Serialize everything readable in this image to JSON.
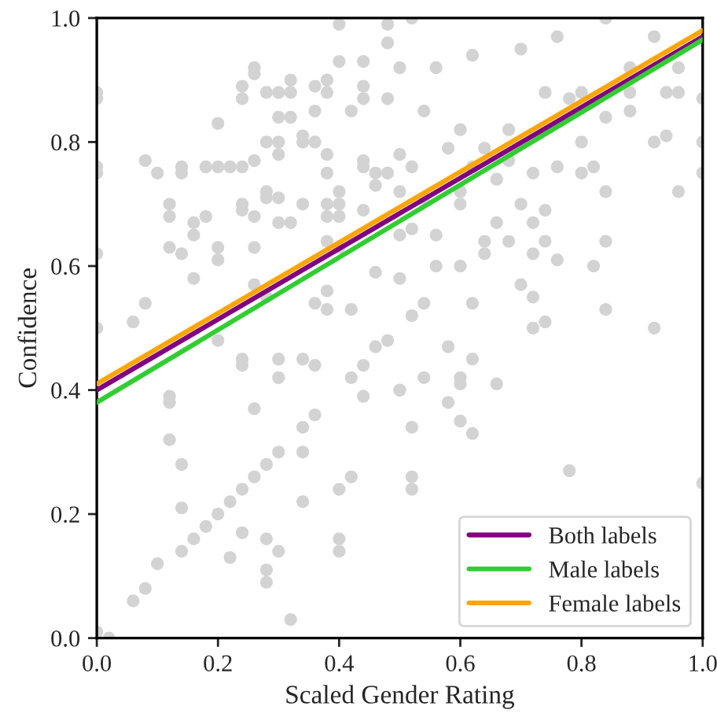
{
  "chart_data": {
    "type": "scatter",
    "xlabel": "Scaled Gender Rating",
    "ylabel": "Confidence",
    "xlim": [
      0,
      1
    ],
    "ylim": [
      0,
      1
    ],
    "xticks": [
      {
        "value": 0,
        "label": "0.0"
      },
      {
        "value": 0.2,
        "label": "0.2"
      },
      {
        "value": 0.4,
        "label": "0.4"
      },
      {
        "value": 0.6,
        "label": "0.6"
      },
      {
        "value": 0.8,
        "label": "0.8"
      },
      {
        "value": 1,
        "label": "1.0"
      }
    ],
    "yticks": [
      {
        "value": 0,
        "label": "0.0"
      },
      {
        "value": 0.2,
        "label": "0.2"
      },
      {
        "value": 0.4,
        "label": "0.4"
      },
      {
        "value": 0.6,
        "label": "0.6"
      },
      {
        "value": 0.8,
        "label": "0.8"
      },
      {
        "value": 1,
        "label": "1.0"
      }
    ],
    "grid": false,
    "legend": "bottom right",
    "marker": "circle",
    "series": [
      {
        "color": "#d3d3d3",
        "x": [
          0.06,
          0.08,
          0.1,
          0.14,
          0.16,
          0.18,
          0.2,
          0.22,
          0.24,
          0.26,
          0.28,
          0.3,
          0.34,
          0.34,
          0.36,
          0.34,
          0.4,
          0.42,
          0.4,
          0.4,
          0.28,
          0.3,
          0.28,
          0.28,
          0.32,
          0.22,
          0.24,
          0.14,
          0.14,
          0.12,
          0.12,
          0.12,
          0.26,
          0.3,
          0.3,
          0.34,
          0.36,
          0.42,
          0.44,
          0.44,
          0.46,
          0.48,
          0.5,
          0.24,
          0.24,
          0.2,
          0.06,
          0.0,
          0.0,
          0.02,
          0.78,
          0.52,
          0.52,
          0.52,
          0.62,
          0.6,
          0.58,
          0.5,
          0.54,
          0.6,
          0.6,
          0.66,
          0.62,
          0.58,
          0.72,
          0.74,
          0.92,
          1.0,
          0.84,
          0.84,
          0.82,
          0.76,
          0.7,
          0.72,
          0.62,
          0.52,
          0.54,
          0.5,
          0.56,
          0.6,
          0.64,
          0.68,
          0.72,
          0.74,
          0.84,
          0.96,
          0.92,
          0.94,
          1.0,
          0.94,
          0.96,
          0.96,
          0.52,
          0.56,
          0.6,
          0.64,
          0.66,
          0.7,
          0.72,
          0.76,
          0.8,
          0.8,
          0.82,
          0.84,
          0.88,
          0.88,
          0.92,
          0.84,
          0.76,
          0.7,
          0.62,
          0.56,
          0.5,
          0.54,
          0.6,
          0.64,
          0.68,
          0.74,
          0.78,
          0.8,
          0.88,
          0.5,
          0.52,
          0.58,
          0.66,
          0.5,
          0.54,
          0.6,
          0.62,
          0.68,
          0.72,
          0.74,
          0.5,
          0.52,
          1.0,
          1.0,
          0.0,
          0.0,
          0.0,
          0.0,
          0.0,
          0.08,
          0.1,
          0.14,
          0.14,
          0.2,
          0.18,
          0.2,
          0.22,
          0.24,
          0.26,
          0.12,
          0.12,
          0.16,
          0.16,
          0.12,
          0.14,
          0.18,
          0.16,
          0.2,
          0.2,
          0.26,
          0.24,
          0.24,
          0.26,
          0.28,
          0.28,
          0.3,
          0.3,
          0.32,
          0.26,
          0.26,
          0.24,
          0.24,
          0.28,
          0.3,
          0.32,
          0.32,
          0.3,
          0.32,
          0.36,
          0.38,
          0.38,
          0.36,
          0.28,
          0.3,
          0.3,
          0.34,
          0.34,
          0.36,
          0.38,
          0.38,
          0.4,
          0.34,
          0.38,
          0.38,
          0.4,
          0.4,
          0.44,
          0.44,
          0.46,
          0.46,
          0.48,
          0.44,
          0.46,
          0.4,
          0.44,
          0.42,
          0.44,
          0.44,
          0.48,
          0.48,
          0.4,
          0.48,
          0.38,
          0.4,
          0.26,
          0.28,
          0.36,
          0.38,
          0.38,
          0.42,
          0.08
        ],
        "values": [
          0.06,
          0.08,
          0.12,
          0.14,
          0.16,
          0.18,
          0.2,
          0.22,
          0.24,
          0.26,
          0.28,
          0.3,
          0.3,
          0.34,
          0.36,
          0.22,
          0.24,
          0.26,
          0.16,
          0.14,
          0.16,
          0.14,
          0.11,
          0.09,
          0.03,
          0.13,
          0.17,
          0.21,
          0.28,
          0.32,
          0.39,
          0.38,
          0.37,
          0.42,
          0.45,
          0.45,
          0.44,
          0.42,
          0.44,
          0.39,
          0.47,
          0.48,
          0.4,
          0.45,
          0.44,
          0.48,
          0.51,
          0.5,
          0.01,
          0.0,
          0.27,
          0.26,
          0.24,
          0.34,
          0.33,
          0.35,
          0.38,
          0.4,
          0.42,
          0.42,
          0.41,
          0.41,
          0.45,
          0.47,
          0.5,
          0.51,
          0.5,
          0.25,
          0.64,
          0.53,
          0.6,
          0.61,
          0.57,
          0.55,
          0.54,
          0.52,
          0.54,
          0.58,
          0.6,
          0.6,
          0.62,
          0.64,
          0.67,
          0.69,
          0.72,
          0.72,
          0.8,
          0.81,
          0.75,
          0.88,
          0.88,
          0.92,
          0.66,
          0.65,
          0.7,
          0.64,
          0.67,
          0.7,
          0.75,
          0.76,
          0.8,
          0.75,
          0.76,
          0.84,
          0.85,
          0.92,
          0.97,
          1.0,
          0.97,
          0.95,
          0.94,
          0.92,
          0.92,
          0.85,
          0.82,
          0.79,
          0.82,
          0.88,
          0.87,
          0.88,
          0.88,
          0.78,
          0.76,
          0.79,
          0.74,
          0.72,
          0.71,
          0.72,
          0.76,
          0.77,
          0.62,
          0.64,
          0.65,
          1.0,
          0.87,
          0.8,
          0.88,
          0.87,
          0.76,
          0.75,
          0.62,
          0.77,
          0.75,
          0.76,
          0.75,
          0.83,
          0.76,
          0.76,
          0.76,
          0.76,
          0.77,
          0.7,
          0.68,
          0.67,
          0.65,
          0.63,
          0.62,
          0.68,
          0.58,
          0.63,
          0.61,
          0.63,
          0.7,
          0.69,
          0.68,
          0.72,
          0.71,
          0.71,
          0.67,
          0.67,
          0.92,
          0.91,
          0.89,
          0.87,
          0.88,
          0.88,
          0.88,
          0.9,
          0.84,
          0.84,
          0.89,
          0.9,
          0.88,
          0.85,
          0.8,
          0.8,
          0.78,
          0.81,
          0.8,
          0.8,
          0.78,
          0.75,
          0.72,
          0.7,
          0.7,
          0.68,
          0.7,
          0.68,
          0.76,
          0.77,
          0.75,
          0.73,
          0.75,
          0.69,
          0.59,
          0.93,
          0.93,
          0.85,
          0.89,
          0.87,
          0.87,
          0.96,
          0.99,
          0.99,
          0.64,
          0.63,
          0.57,
          0.55,
          0.54,
          0.56,
          0.53,
          0.53,
          0.54
        ]
      },
      {
        "type": "line",
        "name": "Both labels",
        "color": "#800080",
        "marker": "none",
        "x": [
          0,
          1
        ],
        "values": [
          0.4,
          0.97
        ]
      },
      {
        "type": "line",
        "name": "Male labels",
        "color": "#32cd32",
        "marker": "none",
        "x": [
          0,
          1
        ],
        "values": [
          0.38,
          0.965
        ]
      },
      {
        "type": "line",
        "name": "Female labels",
        "color": "#ffa500",
        "marker": "none",
        "x": [
          0,
          1
        ],
        "values": [
          0.41,
          0.98
        ]
      }
    ]
  }
}
